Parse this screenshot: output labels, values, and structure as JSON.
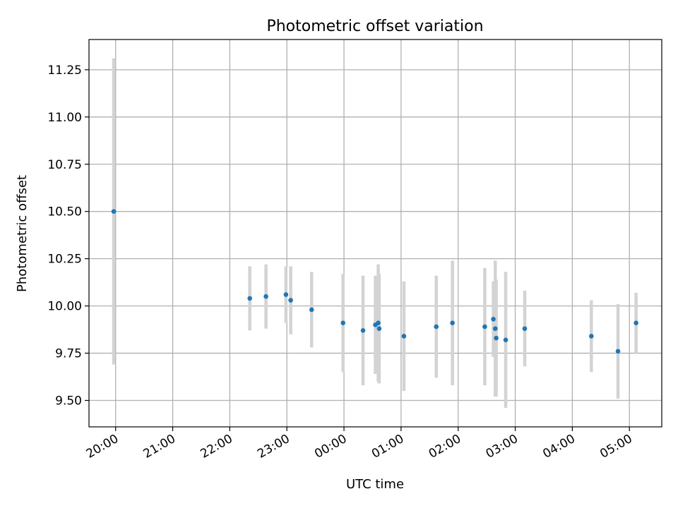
{
  "chart_data": {
    "type": "scatter",
    "title": "Photometric offset variation",
    "xlabel": "UTC time",
    "ylabel": "Photometric offset",
    "x_ticks": [
      "20:00",
      "21:00",
      "22:00",
      "23:00",
      "00:00",
      "01:00",
      "02:00",
      "03:00",
      "04:00",
      "05:00"
    ],
    "y_ticks": [
      "9.50",
      "9.75",
      "10.00",
      "10.25",
      "10.50",
      "10.75",
      "11.00",
      "11.25"
    ],
    "xlim": [
      "19:32",
      "05:34"
    ],
    "ylim": [
      9.36,
      11.41
    ],
    "grid": true,
    "colors": {
      "marker": "#1f77b4",
      "errorbar": "#d3d3d3",
      "grid": "#b0b0b0"
    },
    "series": [
      {
        "points": [
          {
            "x": "19:58",
            "y": 10.5,
            "err": 0.81
          },
          {
            "x": "22:21",
            "y": 10.04,
            "err": 0.17
          },
          {
            "x": "22:38",
            "y": 10.05,
            "err": 0.17
          },
          {
            "x": "22:59",
            "y": 10.06,
            "err": 0.15
          },
          {
            "x": "23:04",
            "y": 10.03,
            "err": 0.18
          },
          {
            "x": "23:26",
            "y": 9.98,
            "err": 0.2
          },
          {
            "x": "23:59",
            "y": 9.91,
            "err": 0.26
          },
          {
            "x": "00:20",
            "y": 9.87,
            "err": 0.29
          },
          {
            "x": "00:33",
            "y": 9.9,
            "err": 0.26
          },
          {
            "x": "00:36",
            "y": 9.91,
            "err": 0.31
          },
          {
            "x": "00:37",
            "y": 9.88,
            "err": 0.29
          },
          {
            "x": "01:03",
            "y": 9.84,
            "err": 0.29
          },
          {
            "x": "01:37",
            "y": 9.89,
            "err": 0.27
          },
          {
            "x": "01:54",
            "y": 9.91,
            "err": 0.33
          },
          {
            "x": "02:28",
            "y": 9.89,
            "err": 0.31
          },
          {
            "x": "02:37",
            "y": 9.93,
            "err": 0.2
          },
          {
            "x": "02:39",
            "y": 9.88,
            "err": 0.36
          },
          {
            "x": "02:40",
            "y": 9.83,
            "err": 0.31
          },
          {
            "x": "02:50",
            "y": 9.82,
            "err": 0.36
          },
          {
            "x": "03:10",
            "y": 9.88,
            "err": 0.2
          },
          {
            "x": "04:20",
            "y": 9.84,
            "err": 0.19
          },
          {
            "x": "04:48",
            "y": 9.76,
            "err": 0.25
          },
          {
            "x": "05:07",
            "y": 9.91,
            "err": 0.16
          }
        ]
      }
    ]
  }
}
